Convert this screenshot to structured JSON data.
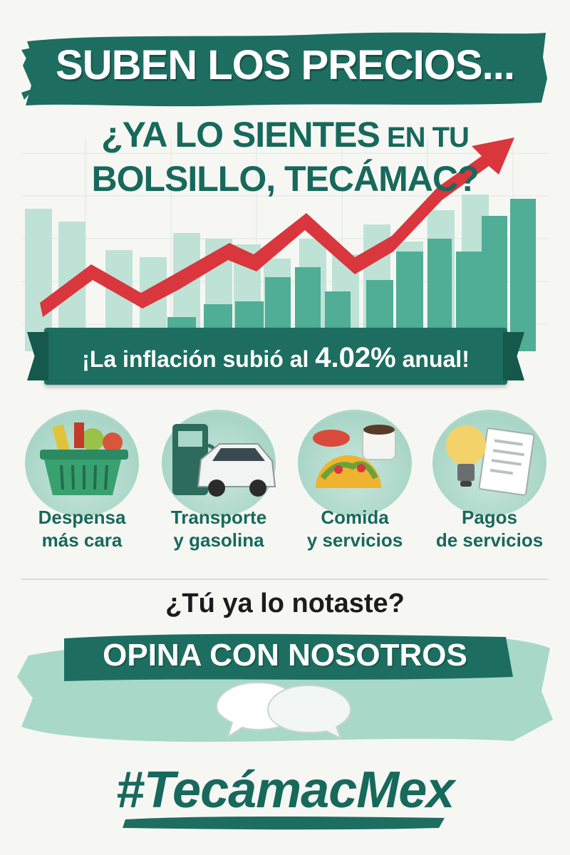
{
  "headline": "SUBEN LOS PRECIOS...",
  "subheadline": {
    "line1_main": "¿YA LO SIENTES",
    "line1_small": " EN TU",
    "line2": "BOLSILLO, TECÁMAC?"
  },
  "inflation": {
    "prefix": "¡La inflación subió al ",
    "rate": "4.02%",
    "suffix": " anual!"
  },
  "categories": [
    {
      "line1": "Despensa",
      "line2": "más cara",
      "icon": "grocery-basket-icon"
    },
    {
      "line1": "Transporte",
      "line2": "y gasolina",
      "icon": "car-fuel-pump-icon"
    },
    {
      "line1": "Comida",
      "line2": "y servicios",
      "icon": "taco-coffee-icon"
    },
    {
      "line1": "Pagos",
      "line2": "de servicios",
      "icon": "lightbulb-bill-icon"
    }
  ],
  "question": "¿Tú ya lo notaste?",
  "cta": "OPINA CON NOSOTROS",
  "hashtag": "#TecámacMex",
  "colors": {
    "primary_green": "#1d6e60",
    "text_green": "#17695c",
    "light_green": "#a7d5c6",
    "arrow_red": "#d9363e",
    "background": "#f6f7f3"
  }
}
